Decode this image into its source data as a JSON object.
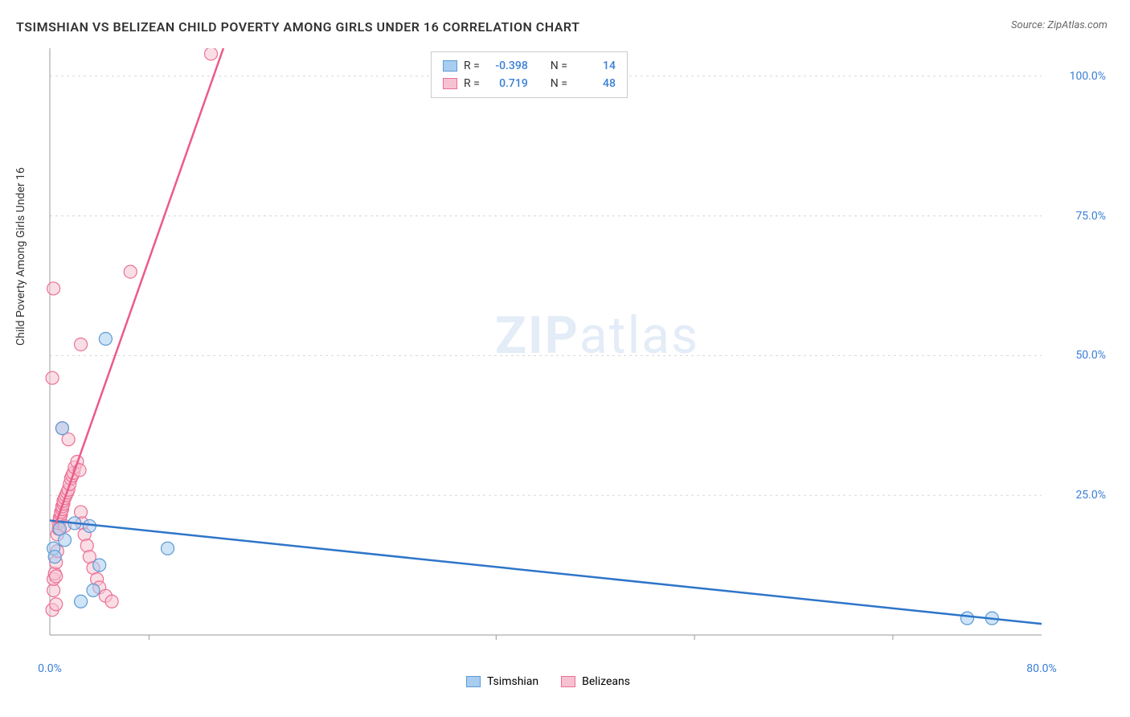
{
  "title": "TSIMSHIAN VS BELIZEAN CHILD POVERTY AMONG GIRLS UNDER 16 CORRELATION CHART",
  "source": "Source: ZipAtlas.com",
  "y_axis_label": "Child Poverty Among Girls Under 16",
  "watermark_bold": "ZIP",
  "watermark_light": "atlas",
  "chart": {
    "type": "scatter",
    "xlim": [
      0,
      80
    ],
    "ylim": [
      0,
      105
    ],
    "x_ticks": [
      0,
      80
    ],
    "x_tick_labels": [
      "0.0%",
      "80.0%"
    ],
    "x_minor_ticks": [
      8,
      36,
      52,
      68
    ],
    "y_ticks": [
      25,
      50,
      75,
      100
    ],
    "y_tick_labels": [
      "25.0%",
      "50.0%",
      "75.0%",
      "100.0%"
    ],
    "grid_color": "#d8d8d8",
    "axis_color": "#999999",
    "background_color": "#ffffff",
    "marker_radius": 8,
    "marker_opacity": 0.55,
    "line_width": 2.5,
    "series": [
      {
        "name": "Tsimshian",
        "color_fill": "#a8cdf0",
        "color_stroke": "#5b9bd5",
        "line_color": "#2e75c9",
        "R": "-0.398",
        "N": "14",
        "trend": {
          "x1": 0,
          "y1": 20.5,
          "x2": 80,
          "y2": 2.0
        },
        "points": [
          [
            0.3,
            15.5
          ],
          [
            0.4,
            14.0
          ],
          [
            0.8,
            19.0
          ],
          [
            1.0,
            37.0
          ],
          [
            1.2,
            17.0
          ],
          [
            2.0,
            20.0
          ],
          [
            3.2,
            19.5
          ],
          [
            4.0,
            12.5
          ],
          [
            3.5,
            8.0
          ],
          [
            2.5,
            6.0
          ],
          [
            4.5,
            53.0
          ],
          [
            9.5,
            15.5
          ],
          [
            74.0,
            3.0
          ],
          [
            76.0,
            3.0
          ]
        ]
      },
      {
        "name": "Belizeans",
        "color_fill": "#f6c2d2",
        "color_stroke": "#ec6f94",
        "line_color": "#ec5a89",
        "R": "0.719",
        "N": "48",
        "trend": {
          "x1": 0.5,
          "y1": 20.0,
          "x2": 14.0,
          "y2": 105.0
        },
        "points": [
          [
            0.2,
            4.5
          ],
          [
            0.3,
            8.0
          ],
          [
            0.3,
            10.0
          ],
          [
            0.4,
            11.0
          ],
          [
            0.5,
            13.0
          ],
          [
            0.5,
            10.5
          ],
          [
            0.6,
            15.0
          ],
          [
            0.6,
            18.0
          ],
          [
            0.7,
            19.0
          ],
          [
            0.7,
            20.0
          ],
          [
            0.8,
            20.5
          ],
          [
            0.8,
            21.0
          ],
          [
            0.9,
            21.5
          ],
          [
            0.9,
            22.0
          ],
          [
            1.0,
            22.5
          ],
          [
            1.0,
            23.0
          ],
          [
            1.1,
            23.5
          ],
          [
            1.1,
            24.0
          ],
          [
            1.2,
            24.5
          ],
          [
            1.3,
            25.0
          ],
          [
            1.4,
            25.5
          ],
          [
            1.5,
            26.0
          ],
          [
            1.6,
            27.0
          ],
          [
            1.7,
            28.0
          ],
          [
            1.8,
            28.5
          ],
          [
            1.9,
            29.0
          ],
          [
            2.0,
            30.0
          ],
          [
            2.2,
            31.0
          ],
          [
            2.4,
            29.5
          ],
          [
            2.5,
            22.0
          ],
          [
            2.6,
            20.0
          ],
          [
            2.8,
            18.0
          ],
          [
            3.0,
            16.0
          ],
          [
            3.2,
            14.0
          ],
          [
            3.5,
            12.0
          ],
          [
            3.8,
            10.0
          ],
          [
            4.0,
            8.5
          ],
          [
            4.5,
            7.0
          ],
          [
            5.0,
            6.0
          ],
          [
            0.2,
            46.0
          ],
          [
            0.3,
            62.0
          ],
          [
            1.0,
            37.0
          ],
          [
            1.5,
            35.0
          ],
          [
            2.5,
            52.0
          ],
          [
            6.5,
            65.0
          ],
          [
            13.0,
            104.0
          ],
          [
            0.5,
            5.5
          ],
          [
            1.2,
            19.5
          ]
        ]
      }
    ]
  },
  "legend_top": {
    "R_label": "R =",
    "N_label": "N ="
  },
  "legend_bottom_labels": [
    "Tsimshian",
    "Belizeans"
  ],
  "colors": {
    "text_primary": "#333333",
    "text_axis": "#3a7fd5"
  }
}
